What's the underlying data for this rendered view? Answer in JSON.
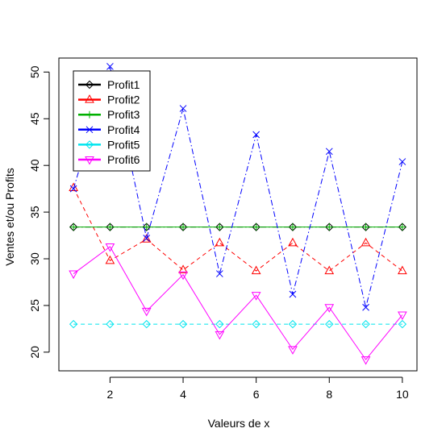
{
  "chart_data": {
    "type": "line",
    "title": "",
    "xlabel": "Valeurs de x",
    "ylabel": "Ventes et/ou Profits",
    "xlim": [
      0.6,
      10.4
    ],
    "ylim": [
      18.0,
      51.5
    ],
    "x_ticks": [
      "2",
      "4",
      "6",
      "8",
      "10"
    ],
    "y_ticks": [
      "20",
      "25",
      "30",
      "35",
      "40",
      "45",
      "50"
    ],
    "legend_position": "top-left",
    "x": [
      1,
      2,
      3,
      4,
      5,
      6,
      7,
      8,
      9,
      10
    ],
    "series": [
      {
        "name": "Profit1",
        "color": "#000000",
        "dash": "dashdot",
        "marker": "diamond",
        "values": [
          33.4,
          33.4,
          33.4,
          33.4,
          33.4,
          33.4,
          33.4,
          33.4,
          33.4,
          33.4
        ]
      },
      {
        "name": "Profit2",
        "color": "#ff0000",
        "dash": "dashed",
        "marker": "triangle-up",
        "values": [
          37.6,
          29.8,
          32.1,
          28.8,
          31.7,
          28.7,
          31.7,
          28.7,
          31.7,
          28.7
        ]
      },
      {
        "name": "Profit3",
        "color": "#00b000",
        "dash": "solid",
        "marker": "plus",
        "values": [
          33.4,
          33.4,
          33.4,
          33.4,
          33.4,
          33.4,
          33.4,
          33.4,
          33.4,
          33.4
        ]
      },
      {
        "name": "Profit4",
        "color": "#0000ff",
        "dash": "dashdot",
        "marker": "cross",
        "values": [
          37.5,
          50.6,
          32.2,
          46.1,
          28.4,
          43.3,
          26.2,
          41.5,
          24.8,
          40.4
        ]
      },
      {
        "name": "Profit5",
        "color": "#00e5ee",
        "dash": "dashed",
        "marker": "diamond",
        "values": [
          23.0,
          23.0,
          23.0,
          23.0,
          23.0,
          23.0,
          23.0,
          23.0,
          23.0,
          23.0
        ]
      },
      {
        "name": "Profit6",
        "color": "#ff00ff",
        "dash": "solid",
        "marker": "triangle-down",
        "values": [
          28.4,
          31.3,
          24.4,
          28.3,
          21.9,
          26.1,
          20.3,
          24.8,
          19.2,
          24.0
        ]
      }
    ]
  }
}
